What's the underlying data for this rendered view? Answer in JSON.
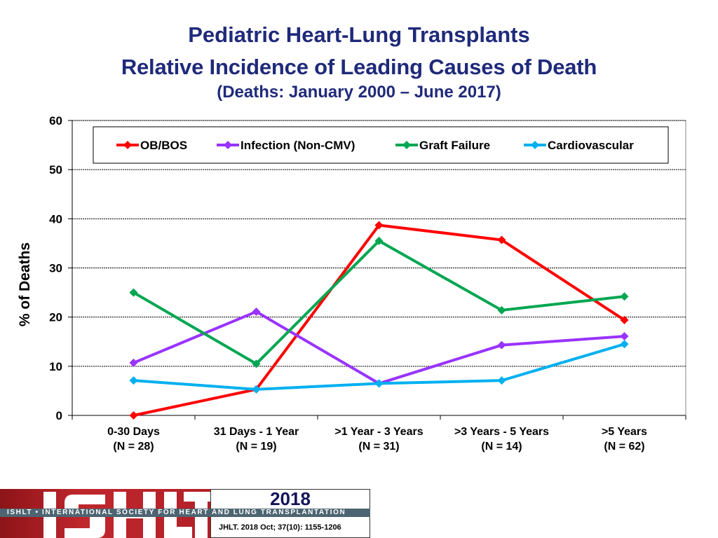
{
  "title": "Pediatric Heart-Lung Transplants",
  "subtitle": "Relative Incidence of Leading Causes of Death",
  "subtitle2": "(Deaths: January 2000 – June 2017)",
  "chart_data": {
    "type": "line",
    "ylabel": "% of Deaths",
    "ylim": [
      0,
      60
    ],
    "yticks": [
      "0",
      "10",
      "20",
      "30",
      "40",
      "50",
      "60"
    ],
    "grid": true,
    "legend_position": "top",
    "categories": [
      [
        "0-30 Days",
        "(N = 28)"
      ],
      [
        "31 Days - 1 Year",
        "(N  = 19)"
      ],
      [
        ">1 Year - 3 Years",
        "(N = 31)"
      ],
      [
        ">3 Years - 5 Years",
        "(N = 14)"
      ],
      [
        ">5 Years",
        "(N = 62)"
      ]
    ],
    "series": [
      {
        "name": "OB/BOS",
        "color": "#ff0000",
        "values": [
          0,
          5.3,
          38.7,
          35.7,
          19.4
        ]
      },
      {
        "name": "Infection (Non-CMV)",
        "color": "#9933ff",
        "values": [
          10.7,
          21.1,
          6.5,
          14.3,
          16.1
        ]
      },
      {
        "name": "Graft Failure",
        "color": "#00a651",
        "values": [
          25.0,
          10.5,
          35.5,
          21.4,
          24.2
        ]
      },
      {
        "name": "Cardiovascular",
        "color": "#00b0f0",
        "values": [
          7.1,
          5.3,
          6.5,
          7.1,
          14.5
        ]
      }
    ]
  },
  "footer": {
    "logo_text": "ISHLT",
    "band_text": "ISHLT • INTERNATIONAL SOCIETY FOR HEART AND LUNG TRANSPLANTATION",
    "year": "2018",
    "citation": "JHLT. 2018 Oct; 37(10): 1155-1206"
  }
}
